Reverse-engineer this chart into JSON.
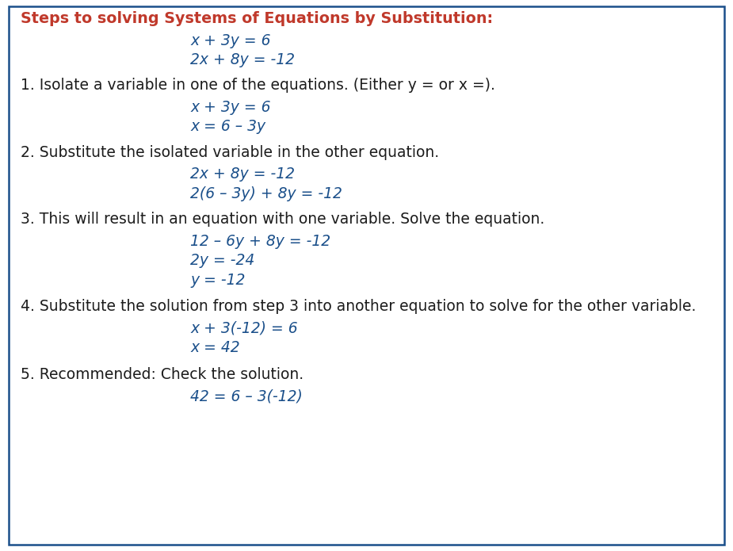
{
  "bg_color": "#ffffff",
  "border_color": "#1a4f8a",
  "title_color": "#c0392b",
  "body_color": "#1c1c1c",
  "eq_color": "#1a4f8a",
  "figwidth": 9.25,
  "figheight": 6.95,
  "dpi": 100,
  "lines": [
    {
      "text": "Steps to solving Systems of Equations by Substitution:",
      "xn": 0.028,
      "yn": 0.952,
      "color": "#c0392b",
      "bold": true,
      "italic": false,
      "size": 13.8
    },
    {
      "text": "x + 3y = 6",
      "xn": 0.26,
      "yn": 0.912,
      "color": "#1a4f8a",
      "bold": false,
      "italic": true,
      "size": 13.5
    },
    {
      "text": "2x + 8y = -12",
      "xn": 0.26,
      "yn": 0.878,
      "color": "#1a4f8a",
      "bold": false,
      "italic": true,
      "size": 13.5
    },
    {
      "text": "1. Isolate a variable in one of the equations. (Either y = or x =).",
      "xn": 0.028,
      "yn": 0.832,
      "color": "#1c1c1c",
      "bold": false,
      "italic": false,
      "size": 13.5
    },
    {
      "text": "x + 3y = 6",
      "xn": 0.26,
      "yn": 0.792,
      "color": "#1a4f8a",
      "bold": false,
      "italic": true,
      "size": 13.5
    },
    {
      "text": "x = 6 – 3y",
      "xn": 0.26,
      "yn": 0.757,
      "color": "#1a4f8a",
      "bold": false,
      "italic": true,
      "size": 13.5
    },
    {
      "text": "2. Substitute the isolated variable in the other equation.",
      "xn": 0.028,
      "yn": 0.71,
      "color": "#1c1c1c",
      "bold": false,
      "italic": false,
      "size": 13.5
    },
    {
      "text": "2x + 8y = -12",
      "xn": 0.26,
      "yn": 0.67,
      "color": "#1a4f8a",
      "bold": false,
      "italic": true,
      "size": 13.5
    },
    {
      "text": "2(6 – 3y) + 8y = -12",
      "xn": 0.26,
      "yn": 0.635,
      "color": "#1a4f8a",
      "bold": false,
      "italic": true,
      "size": 13.5
    },
    {
      "text": "3. This will result in an equation with one variable. Solve the equation.",
      "xn": 0.028,
      "yn": 0.588,
      "color": "#1c1c1c",
      "bold": false,
      "italic": false,
      "size": 13.5
    },
    {
      "text": "12 – 6y + 8y = -12",
      "xn": 0.26,
      "yn": 0.548,
      "color": "#1a4f8a",
      "bold": false,
      "italic": true,
      "size": 13.5
    },
    {
      "text": "2y = -24",
      "xn": 0.26,
      "yn": 0.513,
      "color": "#1a4f8a",
      "bold": false,
      "italic": true,
      "size": 13.5
    },
    {
      "text": "y = -12",
      "xn": 0.26,
      "yn": 0.478,
      "color": "#1a4f8a",
      "bold": false,
      "italic": true,
      "size": 13.5
    },
    {
      "text": "4. Substitute the solution from step 3 into another equation to solve for the other variable.",
      "xn": 0.028,
      "yn": 0.43,
      "color": "#1c1c1c",
      "bold": false,
      "italic": false,
      "size": 13.5
    },
    {
      "text": "x + 3(-12) = 6",
      "xn": 0.26,
      "yn": 0.39,
      "color": "#1a4f8a",
      "bold": false,
      "italic": true,
      "size": 13.5
    },
    {
      "text": "x = 42",
      "xn": 0.26,
      "yn": 0.355,
      "color": "#1a4f8a",
      "bold": false,
      "italic": true,
      "size": 13.5
    },
    {
      "text": "5. Recommended: Check the solution.",
      "xn": 0.028,
      "yn": 0.307,
      "color": "#1c1c1c",
      "bold": false,
      "italic": false,
      "size": 13.5
    },
    {
      "text": "42 = 6 – 3(-12)",
      "xn": 0.26,
      "yn": 0.267,
      "color": "#1a4f8a",
      "bold": false,
      "italic": true,
      "size": 13.5
    }
  ]
}
